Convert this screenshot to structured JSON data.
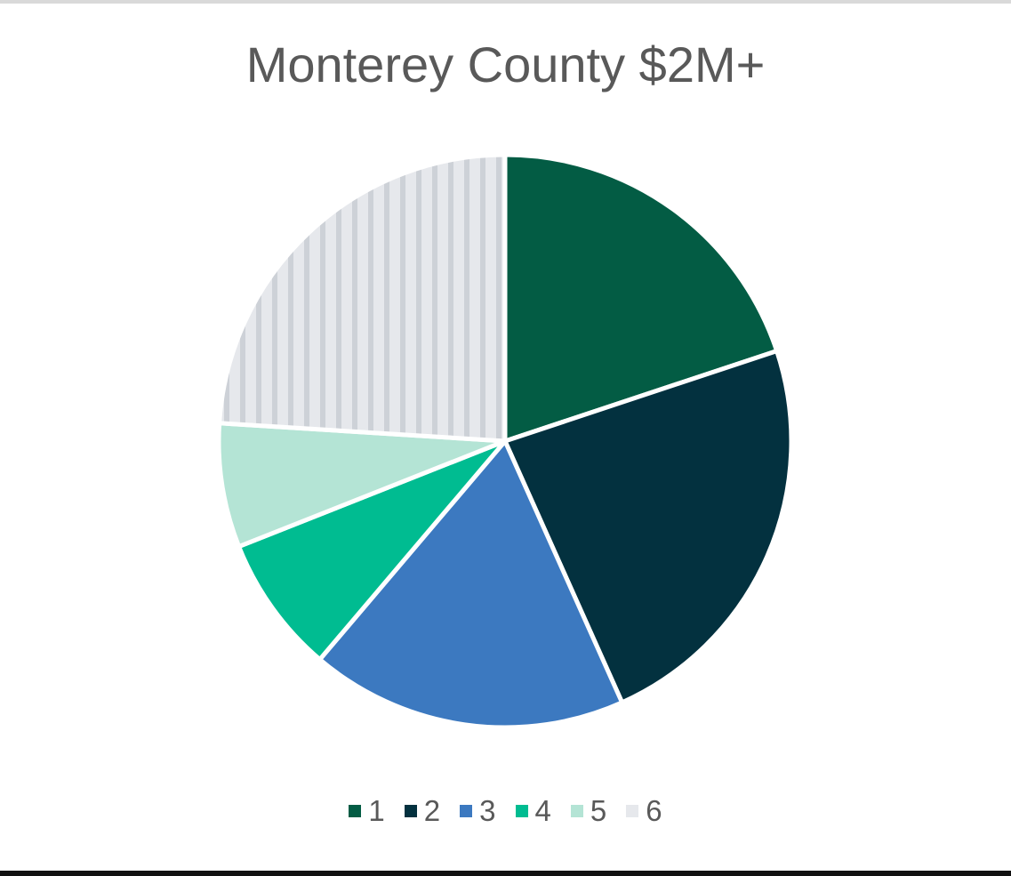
{
  "chart_data": {
    "type": "pie",
    "title": "Monterey County $2M+",
    "categories": [
      "1",
      "2",
      "3",
      "4",
      "5",
      "6"
    ],
    "values": [
      19.9,
      23.4,
      17.9,
      7.8,
      7.0,
      24.0
    ],
    "colors": [
      "#035C44",
      "#03313F",
      "#3C79C0",
      "#00BC91",
      "#B4E4D5",
      "#E6E8EC"
    ],
    "slice_6_pattern": "vertical-stripes",
    "slice_6_stripe_color": "#CDD1D7",
    "start_angle_deg": 0,
    "direction": "clockwise",
    "legend": {
      "position": "bottom",
      "entries": [
        "1",
        "2",
        "3",
        "4",
        "5",
        "6"
      ]
    }
  }
}
